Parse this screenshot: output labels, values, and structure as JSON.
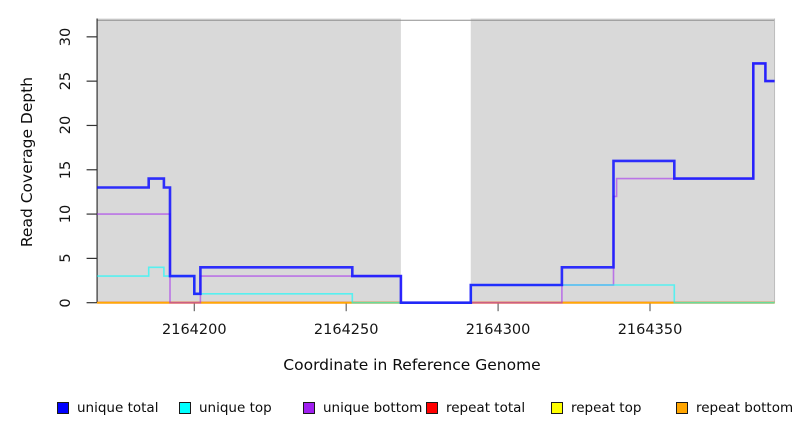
{
  "figure": {
    "x_axis_title": "Coordinate in Reference Genome",
    "y_axis_title": "Read Coverage Depth"
  },
  "legend": {
    "items": [
      {
        "label": "unique total",
        "color": "#0000FF"
      },
      {
        "label": "unique top",
        "color": "#00FFFF"
      },
      {
        "label": "unique bottom",
        "color": "#A020F0"
      },
      {
        "label": "repeat total",
        "color": "#FF0000"
      },
      {
        "label": "repeat top",
        "color": "#FFFF00"
      },
      {
        "label": "repeat bottom",
        "color": "#FFA500"
      }
    ]
  },
  "chart_data": {
    "type": "line",
    "subtype": "step-coverage",
    "title": "",
    "xlabel": "Coordinate in Reference Genome",
    "ylabel": "Read Coverage Depth",
    "xlim": [
      2164168,
      2164391
    ],
    "ylim": [
      0,
      31.9
    ],
    "x_ticks": [
      2164200,
      2164250,
      2164300,
      2164350
    ],
    "y_ticks": [
      0,
      5,
      10,
      15,
      20,
      25,
      30
    ],
    "grid": false,
    "legend_position": "bottom",
    "plot_background_color": "#D9D9D9",
    "shaded_regions": [
      [
        2164168,
        2164268
      ],
      [
        2164291,
        2164391
      ]
    ],
    "uncovered_gap_region": [
      2164268,
      2164291
    ],
    "series": [
      {
        "name": "unique total",
        "color": "#1414FF",
        "opacity": 0.88,
        "line_width": 2.6,
        "steps": [
          [
            2164168,
            13
          ],
          [
            2164185,
            14
          ],
          [
            2164190,
            13
          ],
          [
            2164192,
            3
          ],
          [
            2164200,
            1
          ],
          [
            2164202,
            4
          ],
          [
            2164252,
            3
          ],
          [
            2164268,
            0
          ],
          [
            2164291,
            2
          ],
          [
            2164321,
            4
          ],
          [
            2164338,
            16
          ],
          [
            2164358,
            14
          ],
          [
            2164384,
            27
          ],
          [
            2164388,
            25
          ],
          [
            2164391,
            25
          ]
        ]
      },
      {
        "name": "unique top",
        "color": "#00FFFF",
        "opacity": 0.6,
        "line_width": 1.6,
        "steps": [
          [
            2164168,
            3
          ],
          [
            2164185,
            4
          ],
          [
            2164190,
            3
          ],
          [
            2164200,
            1
          ],
          [
            2164252,
            0
          ],
          [
            2164291,
            2
          ],
          [
            2164358,
            0
          ],
          [
            2164391,
            0
          ]
        ]
      },
      {
        "name": "unique bottom",
        "color": "#A020F0",
        "opacity": 0.55,
        "line_width": 1.6,
        "steps": [
          [
            2164168,
            10
          ],
          [
            2164192,
            0
          ],
          [
            2164202,
            3
          ],
          [
            2164268,
            0
          ],
          [
            2164321,
            2
          ],
          [
            2164338,
            12
          ],
          [
            2164339,
            14
          ],
          [
            2164384,
            27
          ],
          [
            2164388,
            25
          ],
          [
            2164391,
            25
          ]
        ]
      },
      {
        "name": "repeat total",
        "color": "#FF0000",
        "opacity": 0.85,
        "line_width": 1.8,
        "steps": [
          [
            2164168,
            0
          ],
          [
            2164391,
            0
          ]
        ]
      },
      {
        "name": "repeat top",
        "color": "#FFFF00",
        "opacity": 0.85,
        "line_width": 1.5,
        "steps": [
          [
            2164168,
            0
          ],
          [
            2164391,
            0
          ]
        ]
      },
      {
        "name": "repeat bottom",
        "color": "#FFA500",
        "opacity": 0.9,
        "line_width": 1.8,
        "steps": [
          [
            2164168,
            0
          ],
          [
            2164391,
            0
          ]
        ]
      }
    ]
  }
}
